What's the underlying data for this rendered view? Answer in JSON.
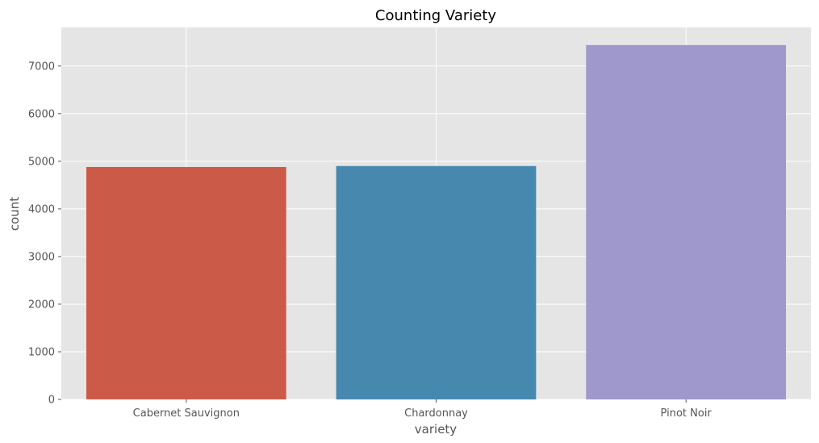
{
  "chart_data": {
    "type": "bar",
    "title": "Counting Variety",
    "xlabel": "variety",
    "ylabel": "count",
    "categories": [
      "Cabernet Sauvignon",
      "Chardonnay",
      "Pinot Noir"
    ],
    "values": [
      4880,
      4900,
      7440
    ],
    "colors": [
      "#cb5b48",
      "#4688ae",
      "#9f98cc"
    ],
    "ylim": [
      0,
      7810
    ],
    "yticks": [
      0,
      1000,
      2000,
      3000,
      4000,
      5000,
      6000,
      7000
    ],
    "grid": true,
    "background_color": "#e5e5e5"
  }
}
